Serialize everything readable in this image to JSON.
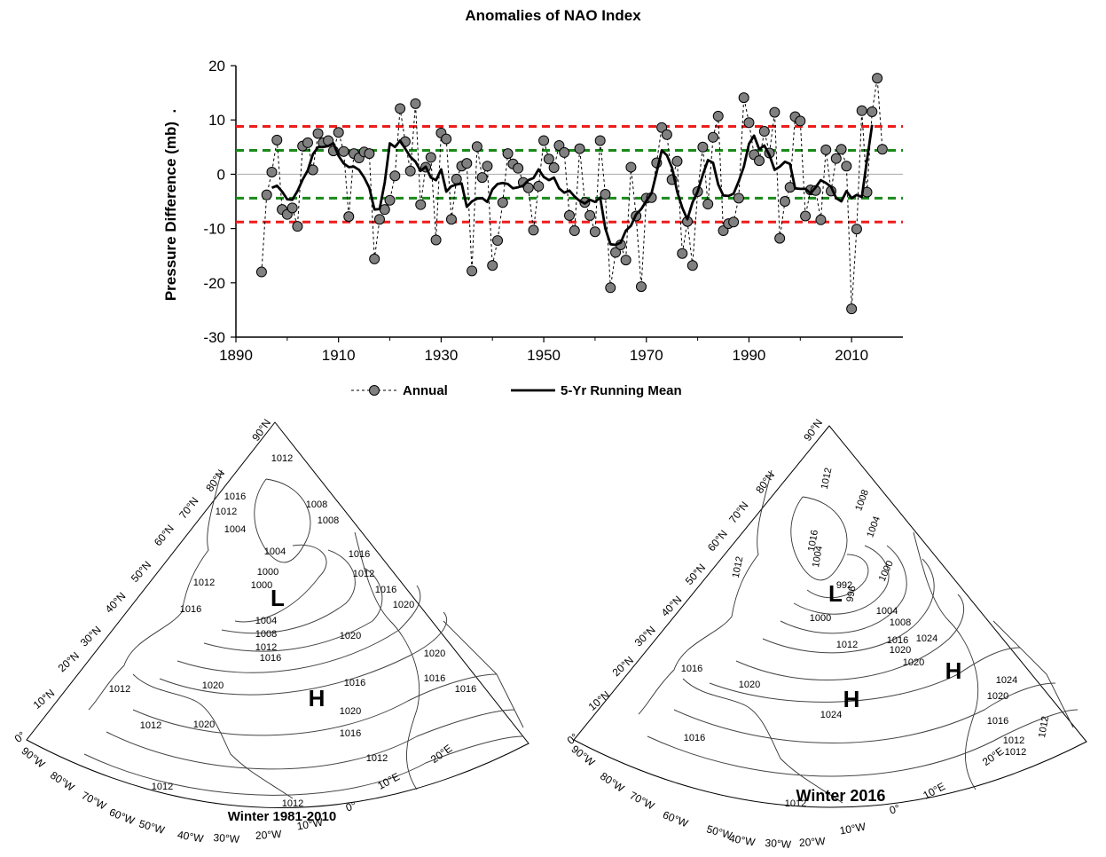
{
  "chart_data": [
    {
      "type": "line",
      "title": "Anomalies of NAO Index",
      "xlabel": "",
      "ylabel": "Pressure Difference (mb)  .",
      "xlim": [
        1890,
        2020
      ],
      "ylim": [
        -30,
        20
      ],
      "x_ticks": [
        "1890",
        "1910",
        "1930",
        "1950",
        "1970",
        "1990",
        "2010"
      ],
      "y_ticks": [
        "20",
        "10",
        "0",
        "-10",
        "-20",
        "-30"
      ],
      "reference_lines": [
        {
          "y": 8.8,
          "color": "#ee1c1c"
        },
        {
          "y": -8.8,
          "color": "#ee1c1c"
        },
        {
          "y": 4.4,
          "color": "#1a8a1a"
        },
        {
          "y": -4.4,
          "color": "#1a8a1a"
        },
        {
          "y": 0,
          "color": "#aaaaaa"
        }
      ],
      "legend_position": "bottom",
      "series": [
        {
          "name": "Annual",
          "color": "#808080",
          "x": [
            1895,
            1896,
            1897,
            1898,
            1899,
            1900,
            1901,
            1902,
            1903,
            1904,
            1905,
            1906,
            1907,
            1908,
            1909,
            1910,
            1911,
            1912,
            1913,
            1914,
            1915,
            1916,
            1917,
            1918,
            1919,
            1920,
            1921,
            1922,
            1923,
            1924,
            1925,
            1926,
            1927,
            1928,
            1929,
            1930,
            1931,
            1932,
            1933,
            1934,
            1935,
            1936,
            1937,
            1938,
            1939,
            1940,
            1941,
            1942,
            1943,
            1944,
            1945,
            1946,
            1947,
            1948,
            1949,
            1950,
            1951,
            1952,
            1953,
            1954,
            1955,
            1956,
            1957,
            1958,
            1959,
            1960,
            1961,
            1962,
            1963,
            1964,
            1965,
            1966,
            1967,
            1968,
            1969,
            1970,
            1971,
            1972,
            1973,
            1974,
            1975,
            1976,
            1977,
            1978,
            1979,
            1980,
            1981,
            1982,
            1983,
            1984,
            1985,
            1986,
            1987,
            1988,
            1989,
            1990,
            1991,
            1992,
            1993,
            1994,
            1995,
            1996,
            1997,
            1998,
            1999,
            2000,
            2001,
            2002,
            2003,
            2004,
            2005,
            2006,
            2007,
            2008,
            2009,
            2010,
            2011,
            2012,
            2013,
            2014,
            2015,
            2016
          ],
          "values": [
            -18,
            -3.8,
            0.4,
            6.3,
            -6.5,
            -7.4,
            -6.2,
            -9.6,
            5.2,
            5.8,
            0.8,
            7.5,
            5.8,
            6.2,
            4.3,
            7.7,
            4.2,
            -7.8,
            3.8,
            3.0,
            4.1,
            3.8,
            -15.6,
            -8.3,
            -6.5,
            -4.8,
            -0.3,
            12.1,
            6.0,
            0.6,
            13.0,
            -5.6,
            1.3,
            3.1,
            -12.1,
            7.6,
            6.5,
            -8.3,
            -0.9,
            1.5,
            2.0,
            -17.8,
            5.1,
            -0.6,
            1.5,
            -16.8,
            -12.2,
            -5.2,
            3.8,
            1.9,
            1.1,
            -1.5,
            -2.5,
            -10.3,
            -2.2,
            6.2,
            2.8,
            1.2,
            5.3,
            4.0,
            -7.6,
            -10.4,
            4.7,
            -5.2,
            -7.6,
            -10.6,
            6.2,
            -3.7,
            -20.9,
            -14.4,
            -13.0,
            -15.8,
            1.3,
            -7.7,
            -20.7,
            -4.4,
            -4.3,
            2.1,
            8.6,
            7.3,
            -1.0,
            2.4,
            -14.6,
            -8.7,
            -16.8,
            -3.2,
            5.0,
            -5.5,
            6.8,
            10.7,
            -10.4,
            -9.1,
            -8.8,
            -4.4,
            14.1,
            9.5,
            3.6,
            2.5,
            7.9,
            3.9,
            11.4,
            -11.8,
            -5.0,
            -2.4,
            10.6,
            9.8,
            -7.7,
            -2.9,
            -3.0,
            -8.4,
            4.5,
            -3.1,
            2.9,
            4.6,
            1.5,
            -24.8,
            -10.1,
            11.7,
            -3.3,
            11.5,
            17.7,
            4.6
          ]
        },
        {
          "name": "5-Yr Running Mean",
          "color": "#000000",
          "x": [
            1897,
            1898,
            1899,
            1900,
            1901,
            1902,
            1903,
            1904,
            1905,
            1906,
            1907,
            1908,
            1909,
            1910,
            1911,
            1912,
            1913,
            1914,
            1915,
            1916,
            1917,
            1918,
            1919,
            1920,
            1921,
            1922,
            1923,
            1924,
            1925,
            1926,
            1927,
            1928,
            1929,
            1930,
            1931,
            1932,
            1933,
            1934,
            1935,
            1936,
            1937,
            1938,
            1939,
            1940,
            1941,
            1942,
            1943,
            1944,
            1945,
            1946,
            1947,
            1948,
            1949,
            1950,
            1951,
            1952,
            1953,
            1954,
            1955,
            1956,
            1957,
            1958,
            1959,
            1960,
            1961,
            1962,
            1963,
            1964,
            1965,
            1966,
            1967,
            1968,
            1969,
            1970,
            1971,
            1972,
            1973,
            1974,
            1975,
            1976,
            1977,
            1978,
            1979,
            1980,
            1981,
            1982,
            1983,
            1984,
            1985,
            1986,
            1987,
            1988,
            1989,
            1990,
            1991,
            1992,
            1993,
            1994,
            1995,
            1996,
            1997,
            1998,
            1999,
            2000,
            2001,
            2002,
            2003,
            2004,
            2005,
            2006,
            2007,
            2008,
            2009,
            2010,
            2011,
            2012,
            2013,
            2014
          ],
          "values": [
            -2.5,
            -2.1,
            -3.2,
            -4.6,
            -4.7,
            -3.1,
            -1.0,
            0.7,
            3.7,
            5.0,
            5.0,
            5.2,
            5.7,
            3.4,
            2.0,
            1.3,
            1.4,
            0.8,
            -0.6,
            -2.5,
            -6.5,
            -6.4,
            -1.5,
            5.7,
            5.0,
            6.2,
            4.7,
            3.2,
            2.3,
            0.6,
            1.4,
            -0.6,
            -1.1,
            0.9,
            -3.2,
            -2.2,
            -1.9,
            -1.7,
            -6.0,
            -5.0,
            -4.5,
            -4.4,
            -5.1,
            -2.8,
            -1.8,
            -1.6,
            -1.8,
            -2.6,
            -2.4,
            -2.1,
            -1.1,
            -0.7,
            0.9,
            -0.5,
            -1.1,
            -0.6,
            -2.6,
            -3.4,
            -3.0,
            -4.1,
            -4.9,
            -5.4,
            -4.7,
            -5.1,
            -4.3,
            -10.0,
            -12.9,
            -13.0,
            -12.6,
            -10.4,
            -9.5,
            -7.4,
            -6.4,
            -4.9,
            -3.5,
            0.3,
            4.4,
            3.5,
            1.2,
            -3.2,
            -6.2,
            -8.3,
            -5.2,
            -3.2,
            -0.1,
            2.6,
            2.1,
            -1.9,
            -3.9,
            -4.0,
            -3.6,
            -1.3,
            1.4,
            5.6,
            7.1,
            4.6,
            5.3,
            3.5,
            0.8,
            1.4,
            2.3,
            1.9,
            -2.6,
            -2.7,
            -2.7,
            -3.5,
            -2.4,
            -1.1,
            -1.6,
            -2.3,
            -4.4,
            -5.0,
            -3.1,
            -4.4,
            -3.8,
            -4.2,
            2.6,
            9.1
          ]
        }
      ]
    },
    {
      "type": "map",
      "title": "Winter 1981-2010",
      "pressure_systems": [
        "L",
        "H"
      ],
      "isobar_labels": [
        "1012",
        "1016",
        "1012",
        "1004",
        "1008",
        "1008",
        "1016",
        "1012",
        "1016",
        "1012",
        "1004",
        "1000",
        "1000",
        "1004",
        "1008",
        "1012",
        "1016",
        "1016",
        "1020",
        "1020",
        "1020",
        "1016",
        "1020",
        "1016",
        "1020",
        "1020",
        "1016",
        "1012",
        "1012",
        "1016",
        "1012",
        "1012",
        "1012"
      ],
      "lat_labels": [
        "90°N",
        "80°N",
        "70°N",
        "60°N",
        "50°N",
        "40°N",
        "30°N",
        "20°N",
        "10°N",
        "0°"
      ],
      "lon_labels": [
        "90°W",
        "80°W",
        "70°W",
        "60°W",
        "50°W",
        "40°W",
        "30°W",
        "20°W",
        "10°W",
        "0°",
        "10°E",
        "20°E"
      ]
    },
    {
      "type": "map",
      "title": "Winter 2016",
      "pressure_systems": [
        "L",
        "H",
        "H"
      ],
      "isobar_labels": [
        "1012",
        "1008",
        "1004",
        "1016",
        "1004",
        "1000",
        "992",
        "996",
        "1000",
        "1004",
        "1008",
        "1012",
        "1016",
        "1020",
        "1024",
        "1020",
        "1024",
        "1020",
        "1024",
        "1020",
        "1016",
        "1012",
        "1016",
        "1012",
        "1012",
        "1016",
        "1012",
        "1012"
      ],
      "lat_labels": [
        "90°N",
        "80°N",
        "70°N",
        "60°N",
        "50°N",
        "40°N",
        "30°N",
        "20°N",
        "10°N",
        "0°"
      ],
      "lon_labels": [
        "90°W",
        "80°W",
        "70°W",
        "60°W",
        "50°W",
        "40°W",
        "30°W",
        "20°W",
        "10°W",
        "0°",
        "10°E",
        "20°E"
      ]
    }
  ]
}
